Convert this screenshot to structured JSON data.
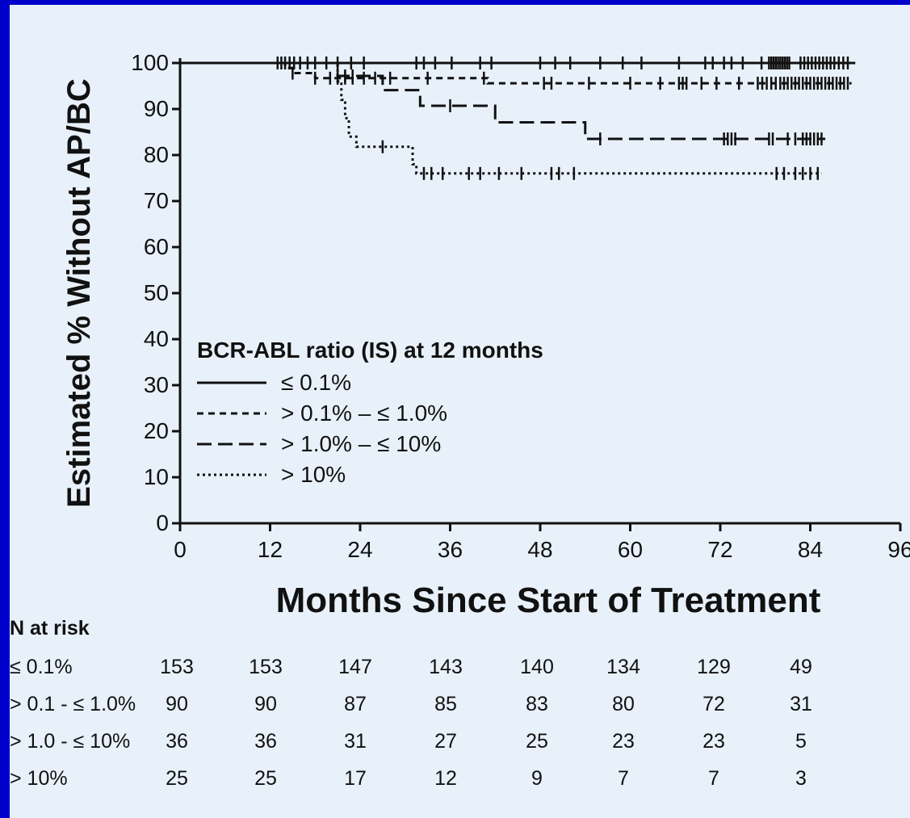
{
  "chart_data": {
    "type": "line",
    "ylabel": "Estimated % Without AP/BC",
    "xlabel": "Months Since Start of Treatment",
    "xlim": [
      0,
      96
    ],
    "ylim": [
      0,
      100
    ],
    "xticks": [
      "0",
      "12",
      "24",
      "36",
      "48",
      "60",
      "72",
      "84",
      "96"
    ],
    "yticks": [
      "0",
      "10",
      "20",
      "30",
      "40",
      "50",
      "60",
      "70",
      "80",
      "90",
      "100"
    ],
    "grid": false,
    "legend": {
      "title": "BCR-ABL ratio (IS) at 12 months",
      "placement": "lower-left"
    },
    "series": [
      {
        "name": "≤ 0.1%",
        "dash": "solid",
        "steps": [
          [
            0,
            100
          ],
          [
            90,
            100
          ]
        ],
        "censor": [
          13,
          13.5,
          14,
          14.6,
          15.2,
          16,
          17,
          18,
          19.5,
          21,
          22.8,
          24.5,
          31.5,
          32.5,
          34,
          36.2,
          40,
          41.5,
          48,
          50,
          52,
          56,
          59,
          61.5,
          66.5,
          70,
          71,
          72.5,
          73.5,
          75,
          77.5,
          78.5,
          78.8,
          79.1,
          79.4,
          79.7,
          80,
          80.3,
          80.6,
          80.9,
          81.2,
          82.7,
          83.2,
          83.7,
          84.2,
          84.7,
          85.2,
          85.7,
          86.2,
          86.7,
          87.2,
          87.8,
          88.4,
          89
        ]
      },
      {
        "name": "> 0.1% – ≤ 1.0%",
        "dash": "short-dash",
        "steps": [
          [
            0,
            100
          ],
          [
            14,
            98.9
          ],
          [
            15,
            97.8
          ],
          [
            18,
            96.7
          ],
          [
            41,
            95.6
          ],
          [
            89.5,
            95.6
          ]
        ],
        "censor": [
          15,
          18,
          20,
          21,
          22,
          23,
          24.5,
          26,
          28,
          33,
          40.5,
          48.5,
          49.5,
          54.5,
          60,
          64,
          66.5,
          67,
          67.5,
          69.5,
          71.5,
          74.5,
          77,
          77.6,
          78.2,
          78.8,
          79.4,
          80,
          80.5,
          81,
          81.5,
          82,
          82.5,
          83,
          83.5,
          84,
          84.5,
          85,
          85.5,
          86,
          86.5,
          87,
          87.5,
          88,
          88.5,
          89
        ]
      },
      {
        "name": "> 1.0% – ≤ 10%",
        "dash": "long-dash",
        "steps": [
          [
            0,
            100
          ],
          [
            21,
            97.2
          ],
          [
            27,
            94.1
          ],
          [
            32,
            90.7
          ],
          [
            42,
            87.1
          ],
          [
            54,
            83.5
          ],
          [
            86,
            83.5
          ]
        ],
        "censor": [
          22,
          23,
          36,
          56,
          72.5,
          73,
          73.5,
          74,
          78.5,
          79,
          81,
          82,
          83,
          83.5,
          84,
          84.5,
          85,
          85.5
        ]
      },
      {
        "name": "> 10%",
        "dash": "dotted",
        "steps": [
          [
            0,
            100
          ],
          [
            21,
            96
          ],
          [
            21.5,
            92
          ],
          [
            22,
            88
          ],
          [
            22.5,
            84
          ],
          [
            23.5,
            81.8
          ],
          [
            31,
            78
          ],
          [
            31.5,
            76
          ],
          [
            85.5,
            76
          ]
        ],
        "censor": [
          27,
          32.5,
          33.5,
          35,
          38.5,
          40,
          42.5,
          45.5,
          49.5,
          50.5,
          52.5,
          79.5,
          80.5,
          82,
          83,
          84,
          85
        ]
      }
    ]
  },
  "risk_table": {
    "title": "N at risk",
    "rows": [
      {
        "label": "≤ 0.1%",
        "values": [
          "153",
          "153",
          "147",
          "143",
          "140",
          "134",
          "129",
          "49"
        ]
      },
      {
        "label": "> 0.1 - ≤ 1.0%",
        "values": [
          "90",
          "90",
          "87",
          "85",
          "83",
          "80",
          "72",
          "31"
        ]
      },
      {
        "label": "> 1.0 - ≤ 10%",
        "values": [
          "36",
          "36",
          "31",
          "27",
          "25",
          "23",
          "23",
          "5"
        ]
      },
      {
        "label": "> 10%",
        "values": [
          "25",
          "25",
          "17",
          "12",
          "9",
          "7",
          "7",
          "3"
        ]
      }
    ]
  }
}
